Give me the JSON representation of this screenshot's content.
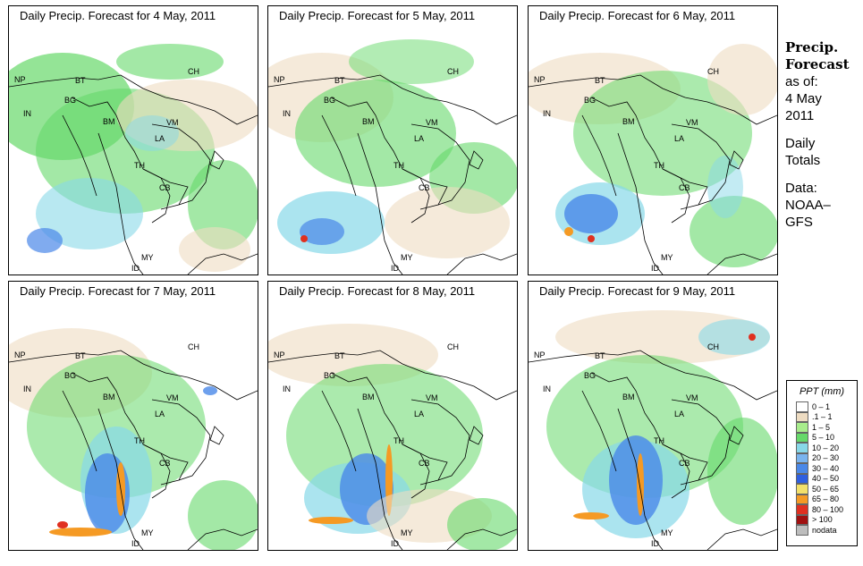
{
  "panels": [
    {
      "title": "Daily Precip. Forecast for  4 May, 2011"
    },
    {
      "title": "Daily Precip. Forecast for  5 May, 2011"
    },
    {
      "title": "Daily Precip. Forecast for  6 May, 2011"
    },
    {
      "title": "Daily Precip. Forecast for  7 May, 2011"
    },
    {
      "title": "Daily Precip. Forecast for  8 May, 2011"
    },
    {
      "title": "Daily Precip. Forecast for  9 May, 2011"
    }
  ],
  "country_labels": [
    "NP",
    "BT",
    "BG",
    "IN",
    "CH",
    "BM",
    "VM",
    "LA",
    "TH",
    "CB",
    "MY",
    "ID"
  ],
  "sidebar": {
    "title_line1": "Precip.",
    "title_line2": "Forecast",
    "asof_line1": "as of:",
    "asof_line2": "4 May",
    "asof_line3": "2011",
    "daily_line1": "Daily",
    "daily_line2": "Totals",
    "data_line1": "Data:",
    "data_line2": "NOAA–",
    "data_line3": "GFS"
  },
  "legend": {
    "title": "PPT (mm)",
    "items": [
      {
        "label": "0 – 1",
        "color": "#ffffff"
      },
      {
        "label": ".1 – 1",
        "color": "#eedcc2"
      },
      {
        "label": "1 – 5",
        "color": "#a8ec8c"
      },
      {
        "label": "5 – 10",
        "color": "#66d96a"
      },
      {
        "label": "10 – 20",
        "color": "#88d8e8"
      },
      {
        "label": "20 – 30",
        "color": "#7ab4ef"
      },
      {
        "label": "30 – 40",
        "color": "#4a88e8"
      },
      {
        "label": "40 – 50",
        "color": "#2f5fe0"
      },
      {
        "label": "50 – 65",
        "color": "#f3e06a"
      },
      {
        "label": "65 – 80",
        "color": "#f59a24"
      },
      {
        "label": "80 – 100",
        "color": "#e03020"
      },
      {
        "label": "> 100",
        "color": "#a01010"
      },
      {
        "label": "nodata",
        "color": "#bdbdbd"
      }
    ]
  },
  "colors": {
    "land_outline": "#000000",
    "beige": "#eedcc2",
    "light_green": "#a8ec8c",
    "green": "#66d96a",
    "cyan": "#88d8e8",
    "blue": "#4a88e8",
    "deep_blue": "#2f5fe0",
    "yellow": "#f3e06a",
    "orange": "#f59a24",
    "red": "#e03020"
  }
}
